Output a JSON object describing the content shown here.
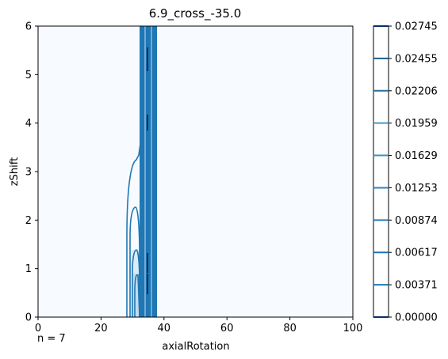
{
  "chart_data": {
    "type": "contour",
    "title": "6.9_cross_-35.0",
    "xlabel": "axialRotation",
    "ylabel": "zShift",
    "xlim": [
      0,
      100
    ],
    "ylim": [
      0,
      6
    ],
    "x_ticks": [
      "0",
      "20",
      "40",
      "60",
      "80",
      "100"
    ],
    "y_ticks": [
      "0",
      "1",
      "2",
      "3",
      "4",
      "5",
      "6"
    ],
    "annotation": "n = 7",
    "colorbar": {
      "levels": [
        0.0,
        0.00371,
        0.00617,
        0.00874,
        0.01253,
        0.01629,
        0.01959,
        0.02206,
        0.02455,
        0.02745
      ],
      "labels": [
        "0.00000",
        "0.00371",
        "0.00617",
        "0.00874",
        "0.01253",
        "0.01629",
        "0.01959",
        "0.02206",
        "0.02455",
        "0.02745"
      ]
    },
    "colors": {
      "background": "#f7fbff",
      "line": "#1f77b4",
      "line_dark": "#08306b",
      "band_light": "#deebf7",
      "band_mid": "#c6dbef"
    },
    "grid": false
  }
}
